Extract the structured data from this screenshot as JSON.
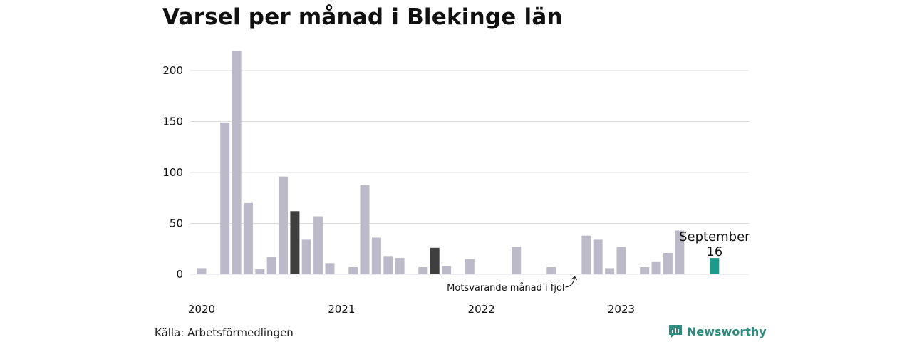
{
  "title": "Varsel per månad i Blekinge län",
  "source": "Källa: Arbetsförmedlingen",
  "brand": "Newsworthy",
  "colors": {
    "bar_default": "#bcbac9",
    "bar_highlight": "#3f3f3f",
    "bar_current": "#1e9a8a",
    "grid": "#dcdce0",
    "brand": "#2e8b7e"
  },
  "chart_data": {
    "type": "bar",
    "title": "Varsel per månad i Blekinge län",
    "xlabel": "",
    "ylabel": "",
    "ylim": [
      0,
      220
    ],
    "yticks": [
      0,
      50,
      100,
      150,
      200
    ],
    "year_labels": [
      "2020",
      "2021",
      "2022",
      "2023"
    ],
    "categories": [
      "2020-01",
      "2020-02",
      "2020-03",
      "2020-04",
      "2020-05",
      "2020-06",
      "2020-07",
      "2020-08",
      "2020-09",
      "2020-10",
      "2020-11",
      "2020-12",
      "2021-01",
      "2021-02",
      "2021-03",
      "2021-04",
      "2021-05",
      "2021-06",
      "2021-07",
      "2021-08",
      "2021-09",
      "2021-10",
      "2021-11",
      "2021-12",
      "2022-01",
      "2022-02",
      "2022-03",
      "2022-04",
      "2022-05",
      "2022-06",
      "2022-07",
      "2022-08",
      "2022-09",
      "2022-10",
      "2022-11",
      "2022-12",
      "2023-01",
      "2023-02",
      "2023-03",
      "2023-04",
      "2023-05",
      "2023-06",
      "2023-07",
      "2023-08",
      "2023-09"
    ],
    "values": [
      6,
      0,
      149,
      219,
      70,
      5,
      17,
      96,
      62,
      34,
      57,
      11,
      0,
      7,
      88,
      36,
      18,
      16,
      0,
      7,
      26,
      8,
      0,
      15,
      0,
      0,
      0,
      27,
      0,
      0,
      7,
      0,
      0,
      38,
      34,
      6,
      27,
      0,
      7,
      12,
      21,
      43,
      0,
      0,
      16
    ],
    "highlight_index": [
      8,
      20
    ],
    "current_index": 44,
    "callout": {
      "month": "September",
      "value": "16"
    },
    "annotation": "Motsvarande månad i fjol"
  }
}
